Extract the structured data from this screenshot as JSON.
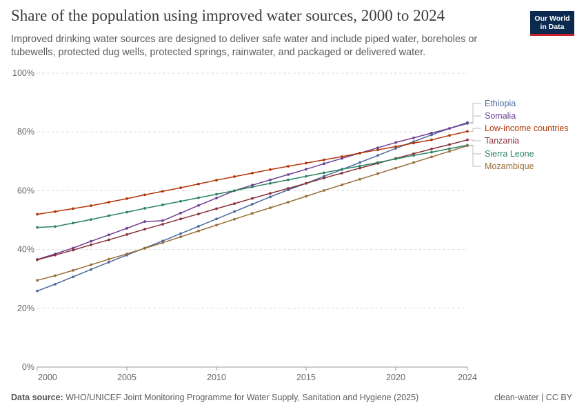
{
  "header": {
    "title": "Share of the population using improved water sources, 2000 to 2024",
    "subtitle": "Improved drinking water sources are designed to deliver safe water and include piped water, boreholes or tubewells, protected dug wells, protected springs, rainwater, and packaged or delivered water."
  },
  "logo": {
    "line1": "Our World",
    "line2": "in Data"
  },
  "footer": {
    "source_label": "Data source:",
    "source_text": "WHO/UNICEF Joint Monitoring Programme for Water Supply, Sanitation and Hygiene (2025)",
    "right": "clean-water | CC BY"
  },
  "colors": {
    "brand_bg": "#0c2a4f",
    "brand_accent": "#c8202f",
    "grid": "#dddddd"
  },
  "chart_data": {
    "type": "line",
    "title": "Share of the population using improved water sources, 2000 to 2024",
    "xlabel": "",
    "ylabel": "",
    "xlim": [
      2000,
      2024
    ],
    "ylim": [
      0,
      100
    ],
    "x_ticks": [
      2000,
      2005,
      2010,
      2015,
      2020,
      2024
    ],
    "y_ticks": [
      0,
      20,
      40,
      60,
      80,
      100
    ],
    "y_tick_labels": [
      "0%",
      "20%",
      "40%",
      "60%",
      "80%",
      "100%"
    ],
    "grid": "horizontal dashed",
    "legend": "right, labels at line ends",
    "x": [
      2000,
      2001,
      2002,
      2003,
      2004,
      2005,
      2006,
      2007,
      2008,
      2009,
      2010,
      2011,
      2012,
      2013,
      2014,
      2015,
      2016,
      2017,
      2018,
      2019,
      2020,
      2021,
      2022,
      2023,
      2024
    ],
    "series": [
      {
        "name": "Ethiopia",
        "color": "#4c6a9c",
        "values": [
          25.9,
          28.2,
          30.7,
          33.2,
          35.7,
          38.1,
          40.5,
          42.9,
          45.4,
          47.9,
          50.4,
          52.9,
          55.4,
          57.9,
          60.3,
          62.5,
          64.9,
          67.2,
          69.6,
          72.0,
          74.4,
          76.7,
          79.0,
          81.2,
          83.2
        ]
      },
      {
        "name": "Somalia",
        "color": "#6d3e91",
        "values": [
          36.6,
          38.5,
          40.5,
          42.8,
          45.0,
          47.2,
          49.5,
          49.8,
          52.4,
          55.0,
          57.5,
          60.0,
          61.9,
          63.7,
          65.5,
          67.3,
          69.2,
          71.0,
          72.8,
          74.6,
          76.4,
          78.0,
          79.6,
          81.2,
          82.9
        ]
      },
      {
        "name": "Low-income countries",
        "color": "#b13507",
        "values": [
          52.0,
          52.9,
          53.9,
          54.9,
          56.1,
          57.3,
          58.6,
          59.8,
          61.0,
          62.3,
          63.6,
          64.8,
          66.0,
          67.2,
          68.3,
          69.4,
          70.5,
          71.6,
          72.8,
          73.9,
          75.0,
          76.2,
          77.3,
          78.8,
          80.2
        ]
      },
      {
        "name": "Tanzania",
        "color": "#883039",
        "values": [
          36.5,
          38.1,
          39.8,
          41.6,
          43.3,
          45.1,
          46.9,
          48.6,
          50.4,
          52.1,
          53.9,
          55.6,
          57.4,
          59.1,
          60.8,
          62.5,
          64.3,
          66.0,
          67.7,
          69.3,
          71.0,
          72.6,
          74.2,
          75.7,
          77.3
        ]
      },
      {
        "name": "Sierra Leone",
        "color": "#2c8465",
        "values": [
          47.5,
          47.8,
          49.0,
          50.2,
          51.5,
          52.7,
          54.0,
          55.2,
          56.4,
          57.6,
          58.8,
          60.0,
          61.3,
          62.5,
          63.7,
          64.9,
          66.1,
          67.3,
          68.4,
          69.6,
          70.8,
          72.0,
          73.1,
          74.3,
          75.5
        ]
      },
      {
        "name": "Mozambique",
        "color": "#996d39",
        "values": [
          29.5,
          31.1,
          32.9,
          34.8,
          36.7,
          38.5,
          40.4,
          42.3,
          44.3,
          46.3,
          48.3,
          50.3,
          52.3,
          54.2,
          56.1,
          58.1,
          60.1,
          62.0,
          63.9,
          65.8,
          67.7,
          69.6,
          71.5,
          73.4,
          75.3
        ]
      }
    ]
  }
}
